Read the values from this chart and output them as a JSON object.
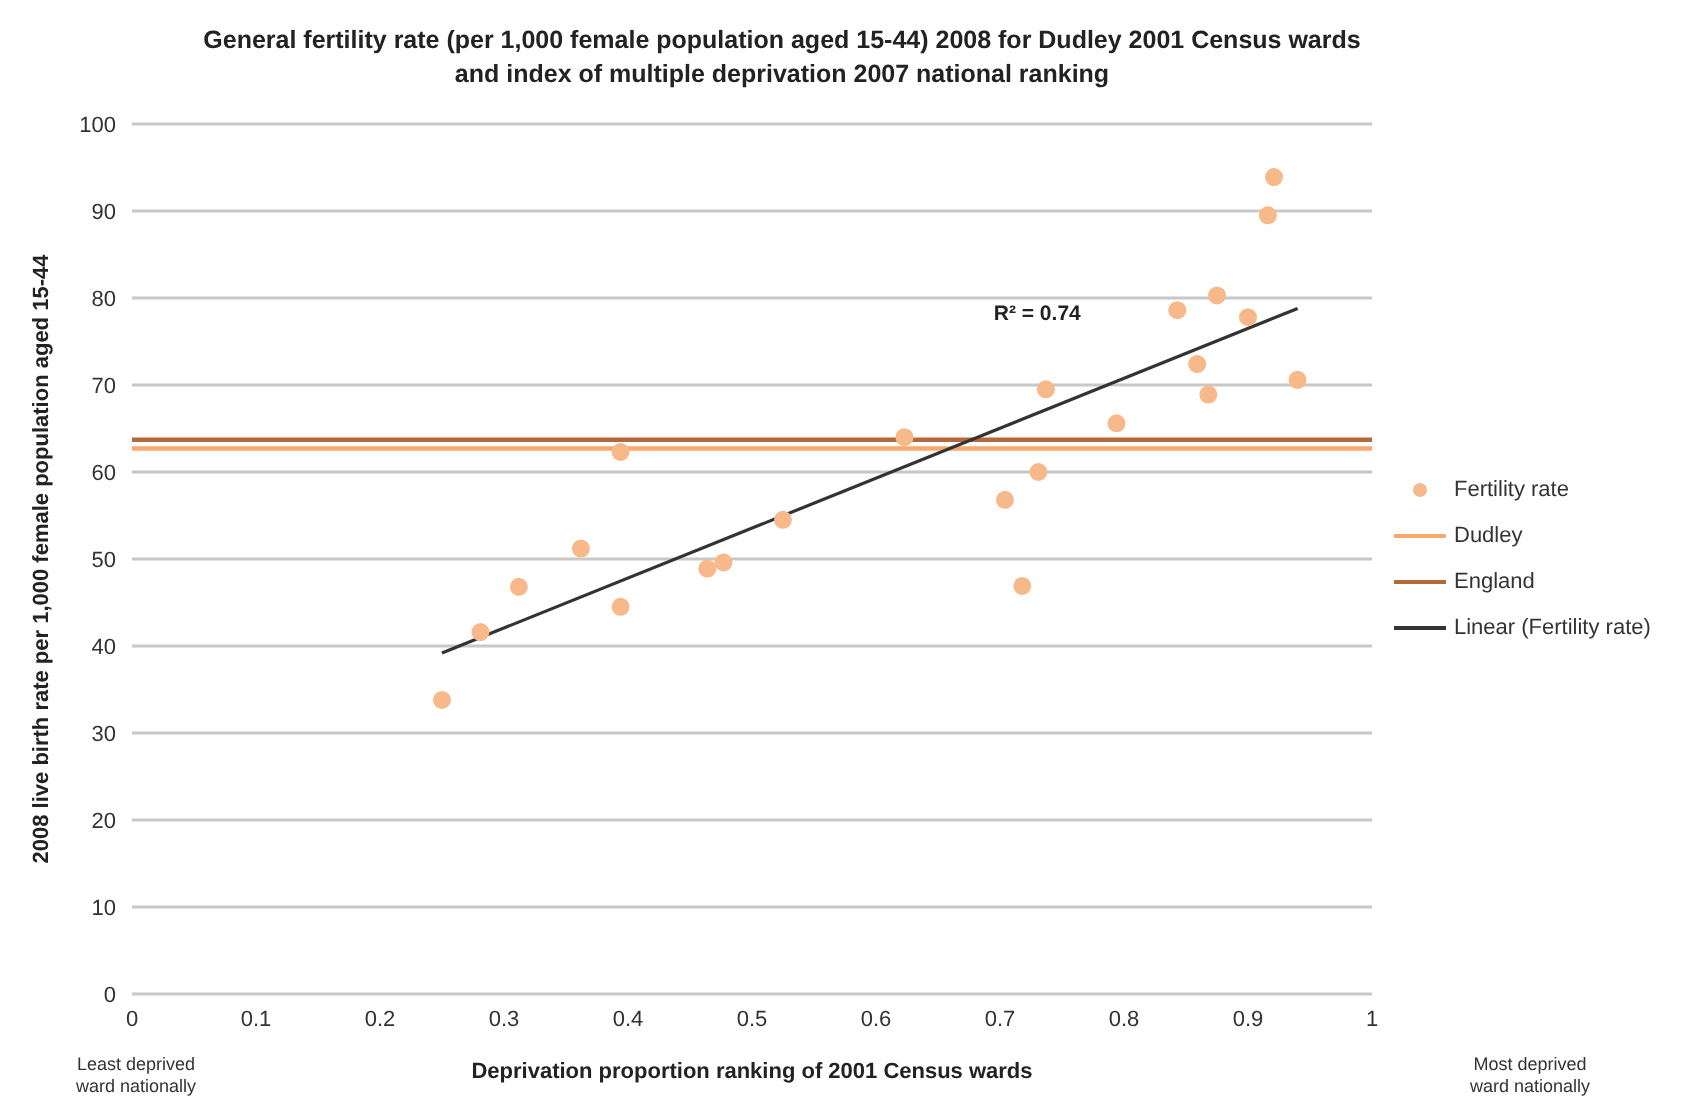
{
  "chart_data": {
    "type": "scatter",
    "title": "General fertility rate (per 1,000 female population aged 15-44) 2008 for Dudley 2001 Census wards and index of multiple deprivation 2007 national ranking",
    "xlabel": "Deprivation proportion ranking of 2001 Census wards",
    "ylabel": "2008 live birth rate per 1,000 female population aged 15-44",
    "annotations": [
      "R² = 0.74",
      "Least deprived ward nationally",
      "Most deprived ward nationally"
    ],
    "series": [
      {
        "name": "Fertility rate",
        "color": "#f7b98a",
        "marker": "circle",
        "x": [
          0.25,
          0.281,
          0.312,
          0.362,
          0.394,
          0.394,
          0.464,
          0.477,
          0.525,
          0.623,
          0.704,
          0.718,
          0.731,
          0.737,
          0.794,
          0.843,
          0.859,
          0.868,
          0.875,
          0.9,
          0.916,
          0.921,
          0.94
        ],
        "values": [
          33.8,
          41.6,
          46.8,
          51.2,
          44.5,
          62.3,
          48.9,
          49.6,
          54.5,
          64.0,
          56.8,
          46.9,
          60.0,
          69.5,
          65.6,
          78.6,
          72.4,
          68.9,
          80.3,
          77.8,
          89.5,
          93.9,
          70.6
        ]
      },
      {
        "name": "Dudley",
        "type": "line",
        "color": "#f9a96e",
        "x": [
          0,
          1
        ],
        "values": [
          62.7,
          62.7
        ]
      },
      {
        "name": "England",
        "type": "line",
        "color": "#b5683c",
        "x": [
          0,
          1
        ],
        "values": [
          63.7,
          63.7
        ]
      },
      {
        "name": "Linear (Fertility rate)",
        "type": "line",
        "color": "#333333",
        "x": [
          0.25,
          0.94
        ],
        "values": [
          39.2,
          78.8
        ]
      }
    ],
    "xlim": [
      0,
      1
    ],
    "xticks": [
      0,
      0.1,
      0.2,
      0.3,
      0.4,
      0.5,
      0.6,
      0.7,
      0.8,
      0.9,
      1
    ],
    "ylim": [
      0,
      100
    ],
    "yticks": [
      0,
      10,
      20,
      30,
      40,
      50,
      60,
      70,
      80,
      90,
      100
    ],
    "grid": "y",
    "legend": "right"
  }
}
